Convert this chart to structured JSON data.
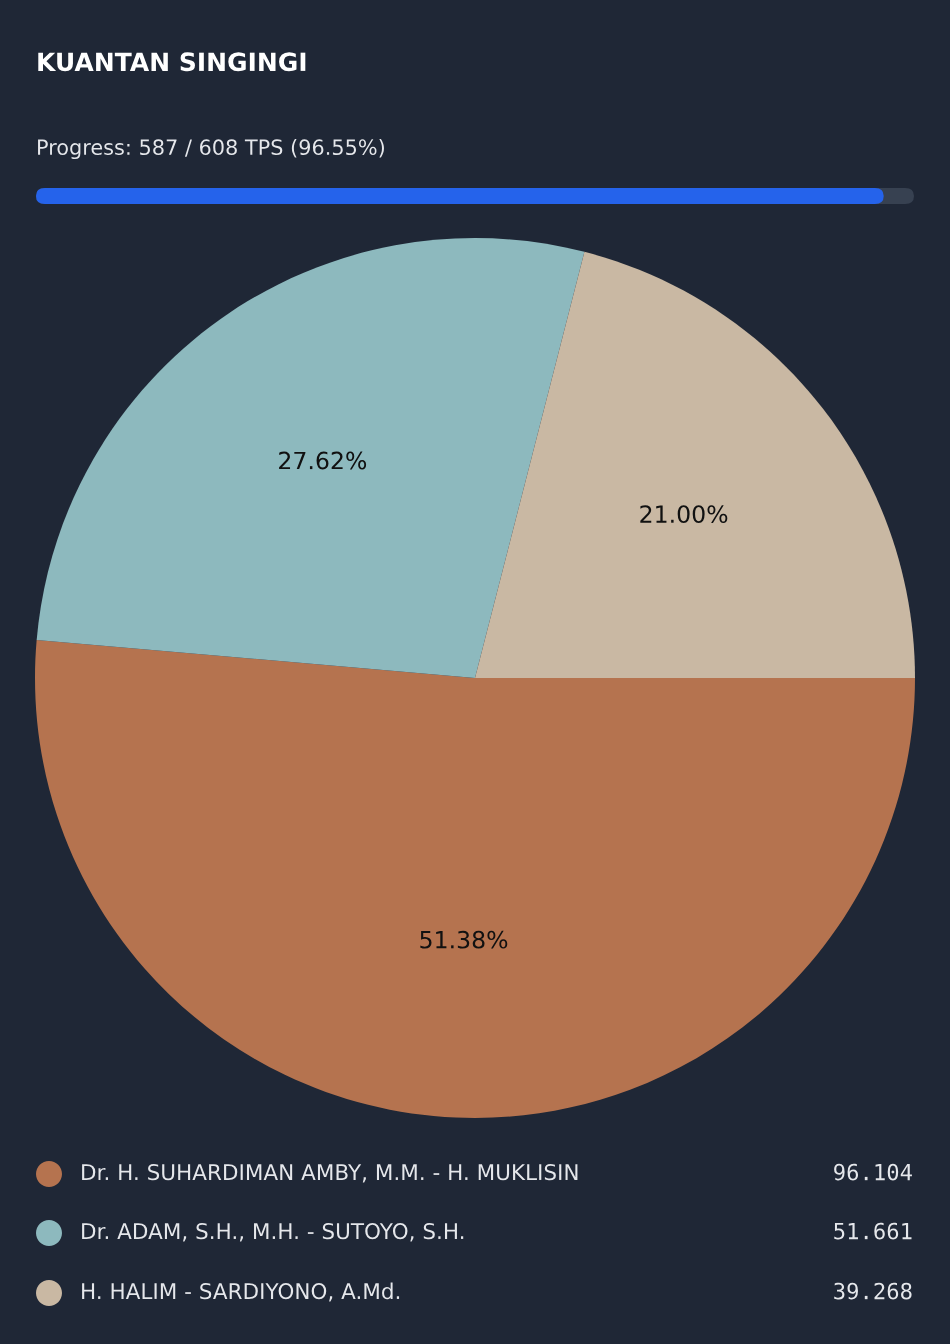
{
  "chart_data": {
    "type": "pie",
    "title": "KUANTAN SINGINGI",
    "subtitle": "Progress: 587 / 608 TPS (96.55%)",
    "categories": [
      "Dr. H. SUHARDIMAN AMBY, M.M. - H. MUKLISIN",
      "Dr. ADAM, S.H., M.H. - SUTOYO, S.H.",
      "H. HALIM - SARDIYONO, A.Md."
    ],
    "values": [
      51.38,
      27.62,
      21.0
    ],
    "value_labels": [
      "51.38%",
      "27.62%",
      "21.00%"
    ],
    "colors": [
      "#b5734f",
      "#8db9be",
      "#c9b8a3"
    ],
    "annotations": [
      "96.104",
      "51.661",
      "39.268"
    ],
    "legend": "bottom"
  }
}
